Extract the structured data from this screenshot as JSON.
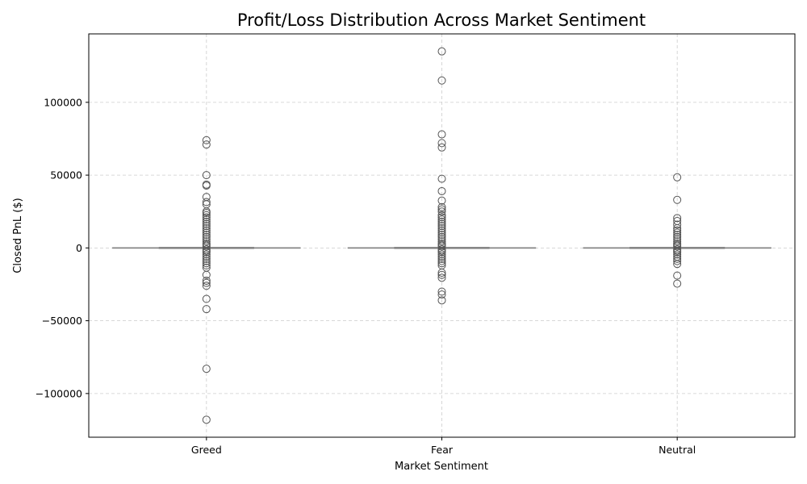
{
  "chart_data": {
    "type": "box",
    "title": "Profit/Loss Distribution Across Market Sentiment",
    "xlabel": "Market Sentiment",
    "ylabel": "Closed PnL ($)",
    "categories": [
      "Greed",
      "Fear",
      "Neutral"
    ],
    "ylim": [
      -130000,
      147000
    ],
    "yticks": [
      -100000,
      -50000,
      0,
      50000,
      100000
    ],
    "ytick_labels": [
      "−100000",
      "−50000",
      "0",
      "50000",
      "100000"
    ],
    "grid": true,
    "colors": {
      "box_line": "#808080",
      "outlier_edge": "#555555",
      "grid": "#cccccc"
    },
    "boxes": [
      {
        "category": "Greed",
        "q1": 0,
        "median": 0,
        "q3": 0,
        "whisker_low": 0,
        "whisker_high": 0,
        "outliers": [
          74000,
          71000,
          50000,
          43500,
          42800,
          35000,
          31500,
          30000,
          25000,
          24000,
          22500,
          21000,
          19500,
          18000,
          16500,
          15000,
          13500,
          12000,
          10500,
          9000,
          7500,
          6000,
          4500,
          3000,
          2000,
          1000,
          -1000,
          -2000,
          -3000,
          -4500,
          -6000,
          -7500,
          -9000,
          -10500,
          -12000,
          -13500,
          -18500,
          -22500,
          -24000,
          -26000,
          -35000,
          -42000,
          -83000,
          -118000
        ]
      },
      {
        "category": "Fear",
        "q1": 0,
        "median": 0,
        "q3": 0,
        "whisker_low": 0,
        "whisker_high": 0,
        "outliers": [
          135000,
          115000,
          78000,
          72000,
          69000,
          47500,
          39000,
          32500,
          28000,
          26500,
          25000,
          22500,
          21000,
          19500,
          18000,
          16500,
          15000,
          13500,
          12000,
          10500,
          9000,
          7500,
          6000,
          4500,
          3000,
          2000,
          1000,
          -1000,
          -2000,
          -3000,
          -4500,
          -6000,
          -7500,
          -9000,
          -10500,
          -12000,
          -17000,
          -18500,
          -20500,
          -30000,
          -32000,
          -36000
        ]
      },
      {
        "category": "Neutral",
        "q1": 0,
        "median": 0,
        "q3": 0,
        "whisker_low": 0,
        "whisker_high": 0,
        "outliers": [
          48500,
          33000,
          20500,
          18500,
          16000,
          13500,
          12000,
          10500,
          9000,
          7500,
          6000,
          4500,
          3000,
          2000,
          1000,
          -1000,
          -2000,
          -3000,
          -4500,
          -6000,
          -7500,
          -9000,
          -11000,
          -19000,
          -24500
        ]
      }
    ]
  }
}
